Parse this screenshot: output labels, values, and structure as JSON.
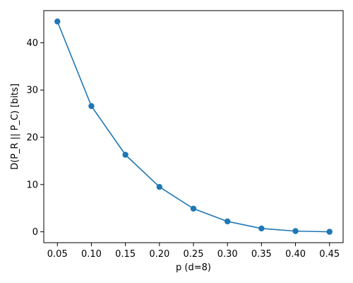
{
  "chart_data": {
    "type": "line",
    "title": "",
    "xlabel": "p (d=8)",
    "ylabel": "D(P_R || P_C) [bits]",
    "xlim": [
      0.03,
      0.47
    ],
    "ylim": [
      -2.3,
      46.8
    ],
    "x_ticks": [
      0.05,
      0.1,
      0.15,
      0.2,
      0.25,
      0.3,
      0.35,
      0.4,
      0.45
    ],
    "x_tick_labels": [
      "0.05",
      "0.10",
      "0.15",
      "0.20",
      "0.25",
      "0.30",
      "0.35",
      "0.40",
      "0.45"
    ],
    "y_ticks": [
      0,
      10,
      20,
      30,
      40
    ],
    "y_tick_labels": [
      "0",
      "10",
      "20",
      "30",
      "40"
    ],
    "grid": false,
    "color": "#1f77b4",
    "series": [
      {
        "x": [
          0.05,
          0.1,
          0.15,
          0.2,
          0.25,
          0.3,
          0.35,
          0.4,
          0.45
        ],
        "values": [
          44.5,
          26.6,
          16.3,
          9.5,
          4.9,
          2.2,
          0.7,
          0.15,
          0.0
        ]
      }
    ]
  }
}
